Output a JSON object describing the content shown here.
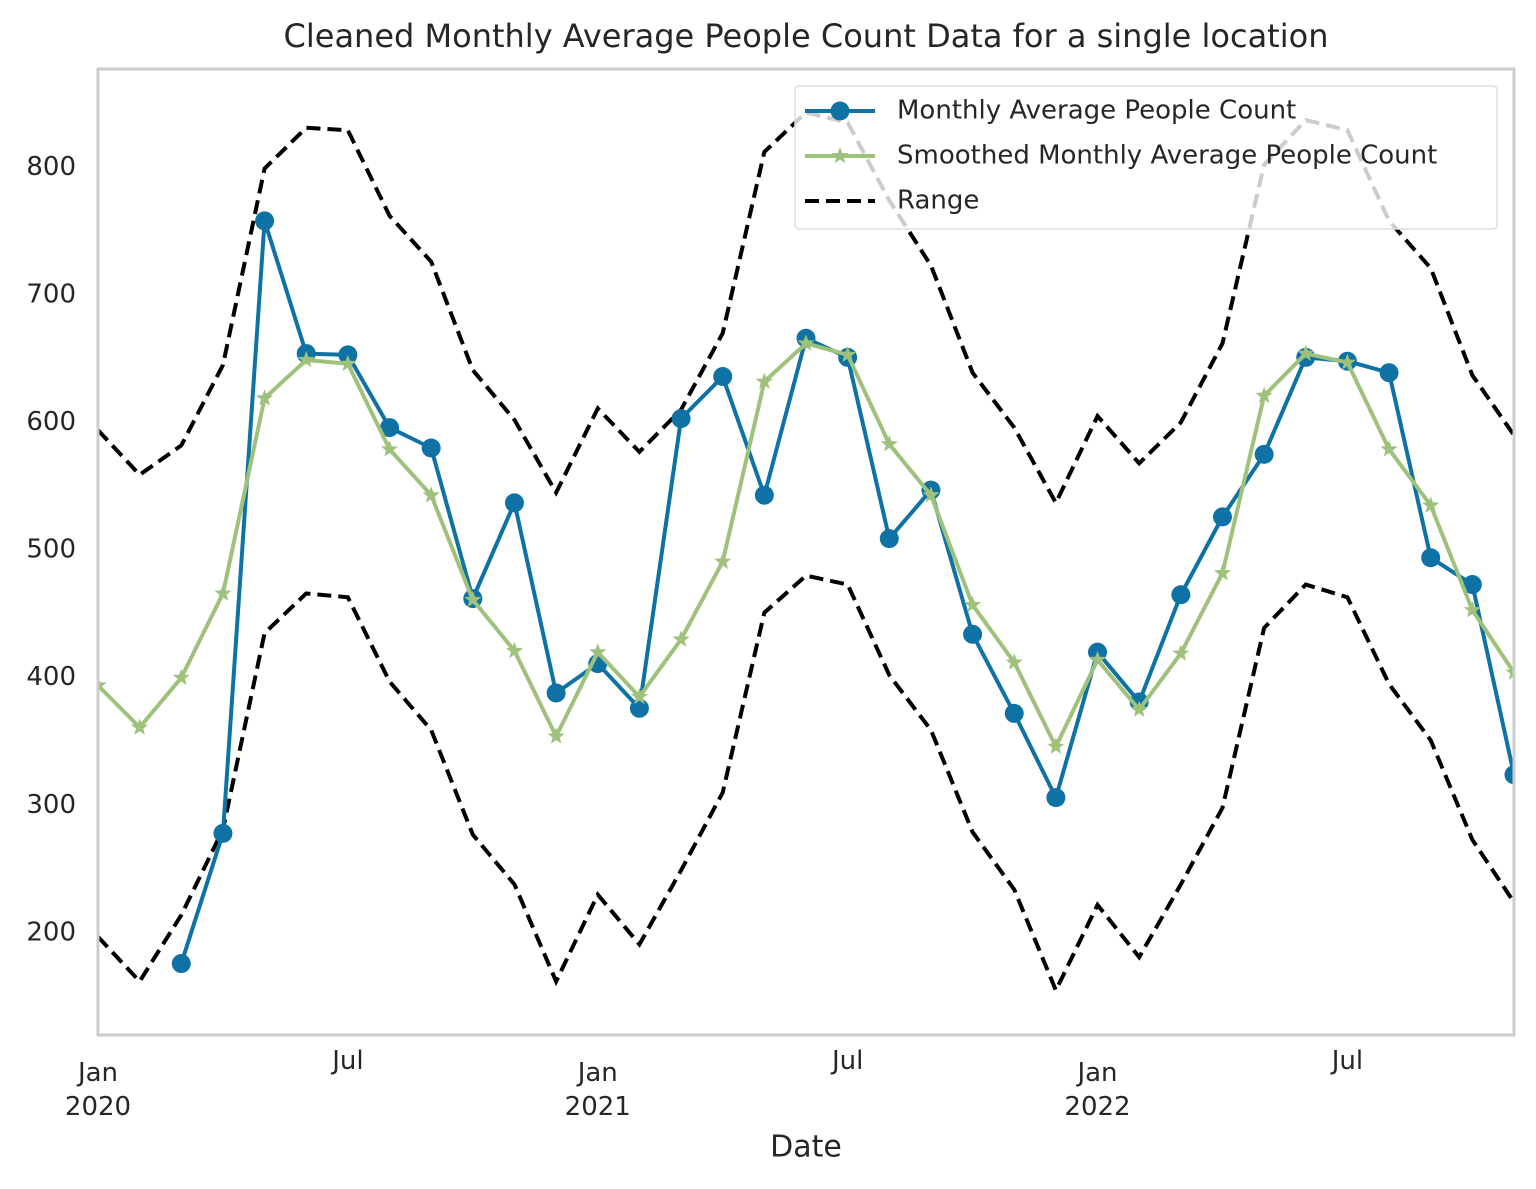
{
  "chart_data": {
    "type": "line",
    "title": "Cleaned Monthly Average People Count Data for a single location",
    "x_label": "Date",
    "x": [
      "2020-01",
      "2020-02",
      "2020-03",
      "2020-04",
      "2020-05",
      "2020-06",
      "2020-07",
      "2020-08",
      "2020-09",
      "2020-10",
      "2020-11",
      "2020-12",
      "2021-01",
      "2021-02",
      "2021-03",
      "2021-04",
      "2021-05",
      "2021-06",
      "2021-07",
      "2021-08",
      "2021-09",
      "2021-10",
      "2021-11",
      "2021-12",
      "2022-01",
      "2022-02",
      "2022-03",
      "2022-04",
      "2022-05",
      "2022-06",
      "2022-07",
      "2022-08",
      "2022-09",
      "2022-10",
      "2022-11"
    ],
    "xlim": [
      "2020-01",
      "2022-11"
    ],
    "xticks": [
      {
        "value": "2020-01",
        "label": "Jan\n2020"
      },
      {
        "value": "2020-07",
        "label": "Jul"
      },
      {
        "value": "2021-01",
        "label": "Jan\n2021"
      },
      {
        "value": "2021-07",
        "label": "Jul"
      },
      {
        "value": "2022-01",
        "label": "Jan\n2022"
      },
      {
        "value": "2022-07",
        "label": "Jul"
      }
    ],
    "ylim": [
      120,
      877
    ],
    "yticks": [
      200,
      300,
      400,
      500,
      600,
      700,
      800
    ],
    "grid": false,
    "legend": "upper right",
    "series": [
      {
        "name": "Monthly Average People Count",
        "color": "#0e72a4",
        "marker": "circle",
        "values": [
          null,
          null,
          176,
          278,
          758,
          654,
          653,
          596,
          580,
          462,
          537,
          388,
          411,
          376,
          603,
          636,
          543,
          666,
          651,
          509,
          547,
          434,
          372,
          306,
          420,
          381,
          465,
          526,
          575,
          651,
          648,
          639,
          494,
          473,
          324
        ]
      },
      {
        "name": "Smoothed Monthly Average People Count",
        "color": "#9ec27b",
        "marker": "star",
        "values": [
          394,
          361,
          400,
          466,
          619,
          649,
          646,
          579,
          543,
          461,
          421,
          354,
          420,
          385,
          430,
          491,
          632,
          662,
          653,
          583,
          543,
          457,
          412,
          346,
          414,
          375,
          419,
          482,
          621,
          654,
          647,
          579,
          535,
          453,
          404
        ]
      }
    ],
    "range": {
      "name": "Range",
      "color": "#000000",
      "upper": [
        594,
        559,
        582,
        645,
        799,
        831,
        829,
        762,
        726,
        641,
        602,
        545,
        611,
        577,
        610,
        670,
        812,
        843,
        835,
        774,
        723,
        639,
        596,
        537,
        605,
        568,
        600,
        662,
        802,
        837,
        829,
        758,
        721,
        637,
        590
      ],
      "lower": [
        197,
        162,
        214,
        281,
        435,
        466,
        463,
        397,
        359,
        277,
        238,
        162,
        230,
        191,
        249,
        310,
        451,
        480,
        473,
        402,
        359,
        279,
        234,
        155,
        222,
        181,
        238,
        298,
        439,
        473,
        463,
        395,
        351,
        273,
        224
      ]
    }
  }
}
